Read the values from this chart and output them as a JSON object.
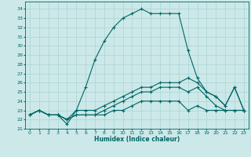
{
  "xlabel": "Humidex (Indice chaleur)",
  "ylabel": "",
  "background_color": "#cce8e8",
  "grid_color": "#aad4d4",
  "line_color": "#006666",
  "ylim": [
    21,
    34.8
  ],
  "xlim": [
    -0.5,
    23.5
  ],
  "yticks": [
    21,
    22,
    23,
    24,
    25,
    26,
    27,
    28,
    29,
    30,
    31,
    32,
    33,
    34
  ],
  "xticks": [
    0,
    1,
    2,
    3,
    4,
    5,
    6,
    7,
    8,
    9,
    10,
    11,
    12,
    13,
    14,
    15,
    16,
    17,
    18,
    19,
    20,
    21,
    22,
    23
  ],
  "hours": [
    0,
    1,
    2,
    3,
    4,
    5,
    6,
    7,
    8,
    9,
    10,
    11,
    12,
    13,
    14,
    15,
    16,
    17,
    18,
    19,
    20,
    21,
    22,
    23
  ],
  "line1": [
    22.5,
    23.0,
    22.5,
    22.5,
    21.5,
    23.0,
    25.5,
    28.5,
    30.5,
    32.0,
    33.0,
    33.5,
    34.0,
    33.5,
    33.5,
    33.5,
    33.5,
    29.5,
    26.5,
    25.0,
    24.5,
    23.5,
    25.5,
    23.0
  ],
  "line2": [
    22.5,
    23.0,
    22.5,
    22.5,
    22.0,
    23.0,
    23.0,
    23.0,
    23.5,
    24.0,
    24.5,
    25.0,
    25.5,
    25.5,
    26.0,
    26.0,
    26.0,
    26.5,
    26.0,
    25.0,
    24.5,
    23.5,
    25.5,
    23.0
  ],
  "line3": [
    22.5,
    23.0,
    22.5,
    22.5,
    22.0,
    22.5,
    22.5,
    22.5,
    23.0,
    23.5,
    24.0,
    24.5,
    25.0,
    25.0,
    25.5,
    25.5,
    25.5,
    25.0,
    25.5,
    24.5,
    23.5,
    23.0,
    23.0,
    23.0
  ],
  "line4": [
    22.5,
    23.0,
    22.5,
    22.5,
    22.0,
    22.5,
    22.5,
    22.5,
    22.5,
    23.0,
    23.0,
    23.5,
    24.0,
    24.0,
    24.0,
    24.0,
    24.0,
    23.0,
    23.5,
    23.0,
    23.0,
    23.0,
    23.0,
    23.0
  ]
}
